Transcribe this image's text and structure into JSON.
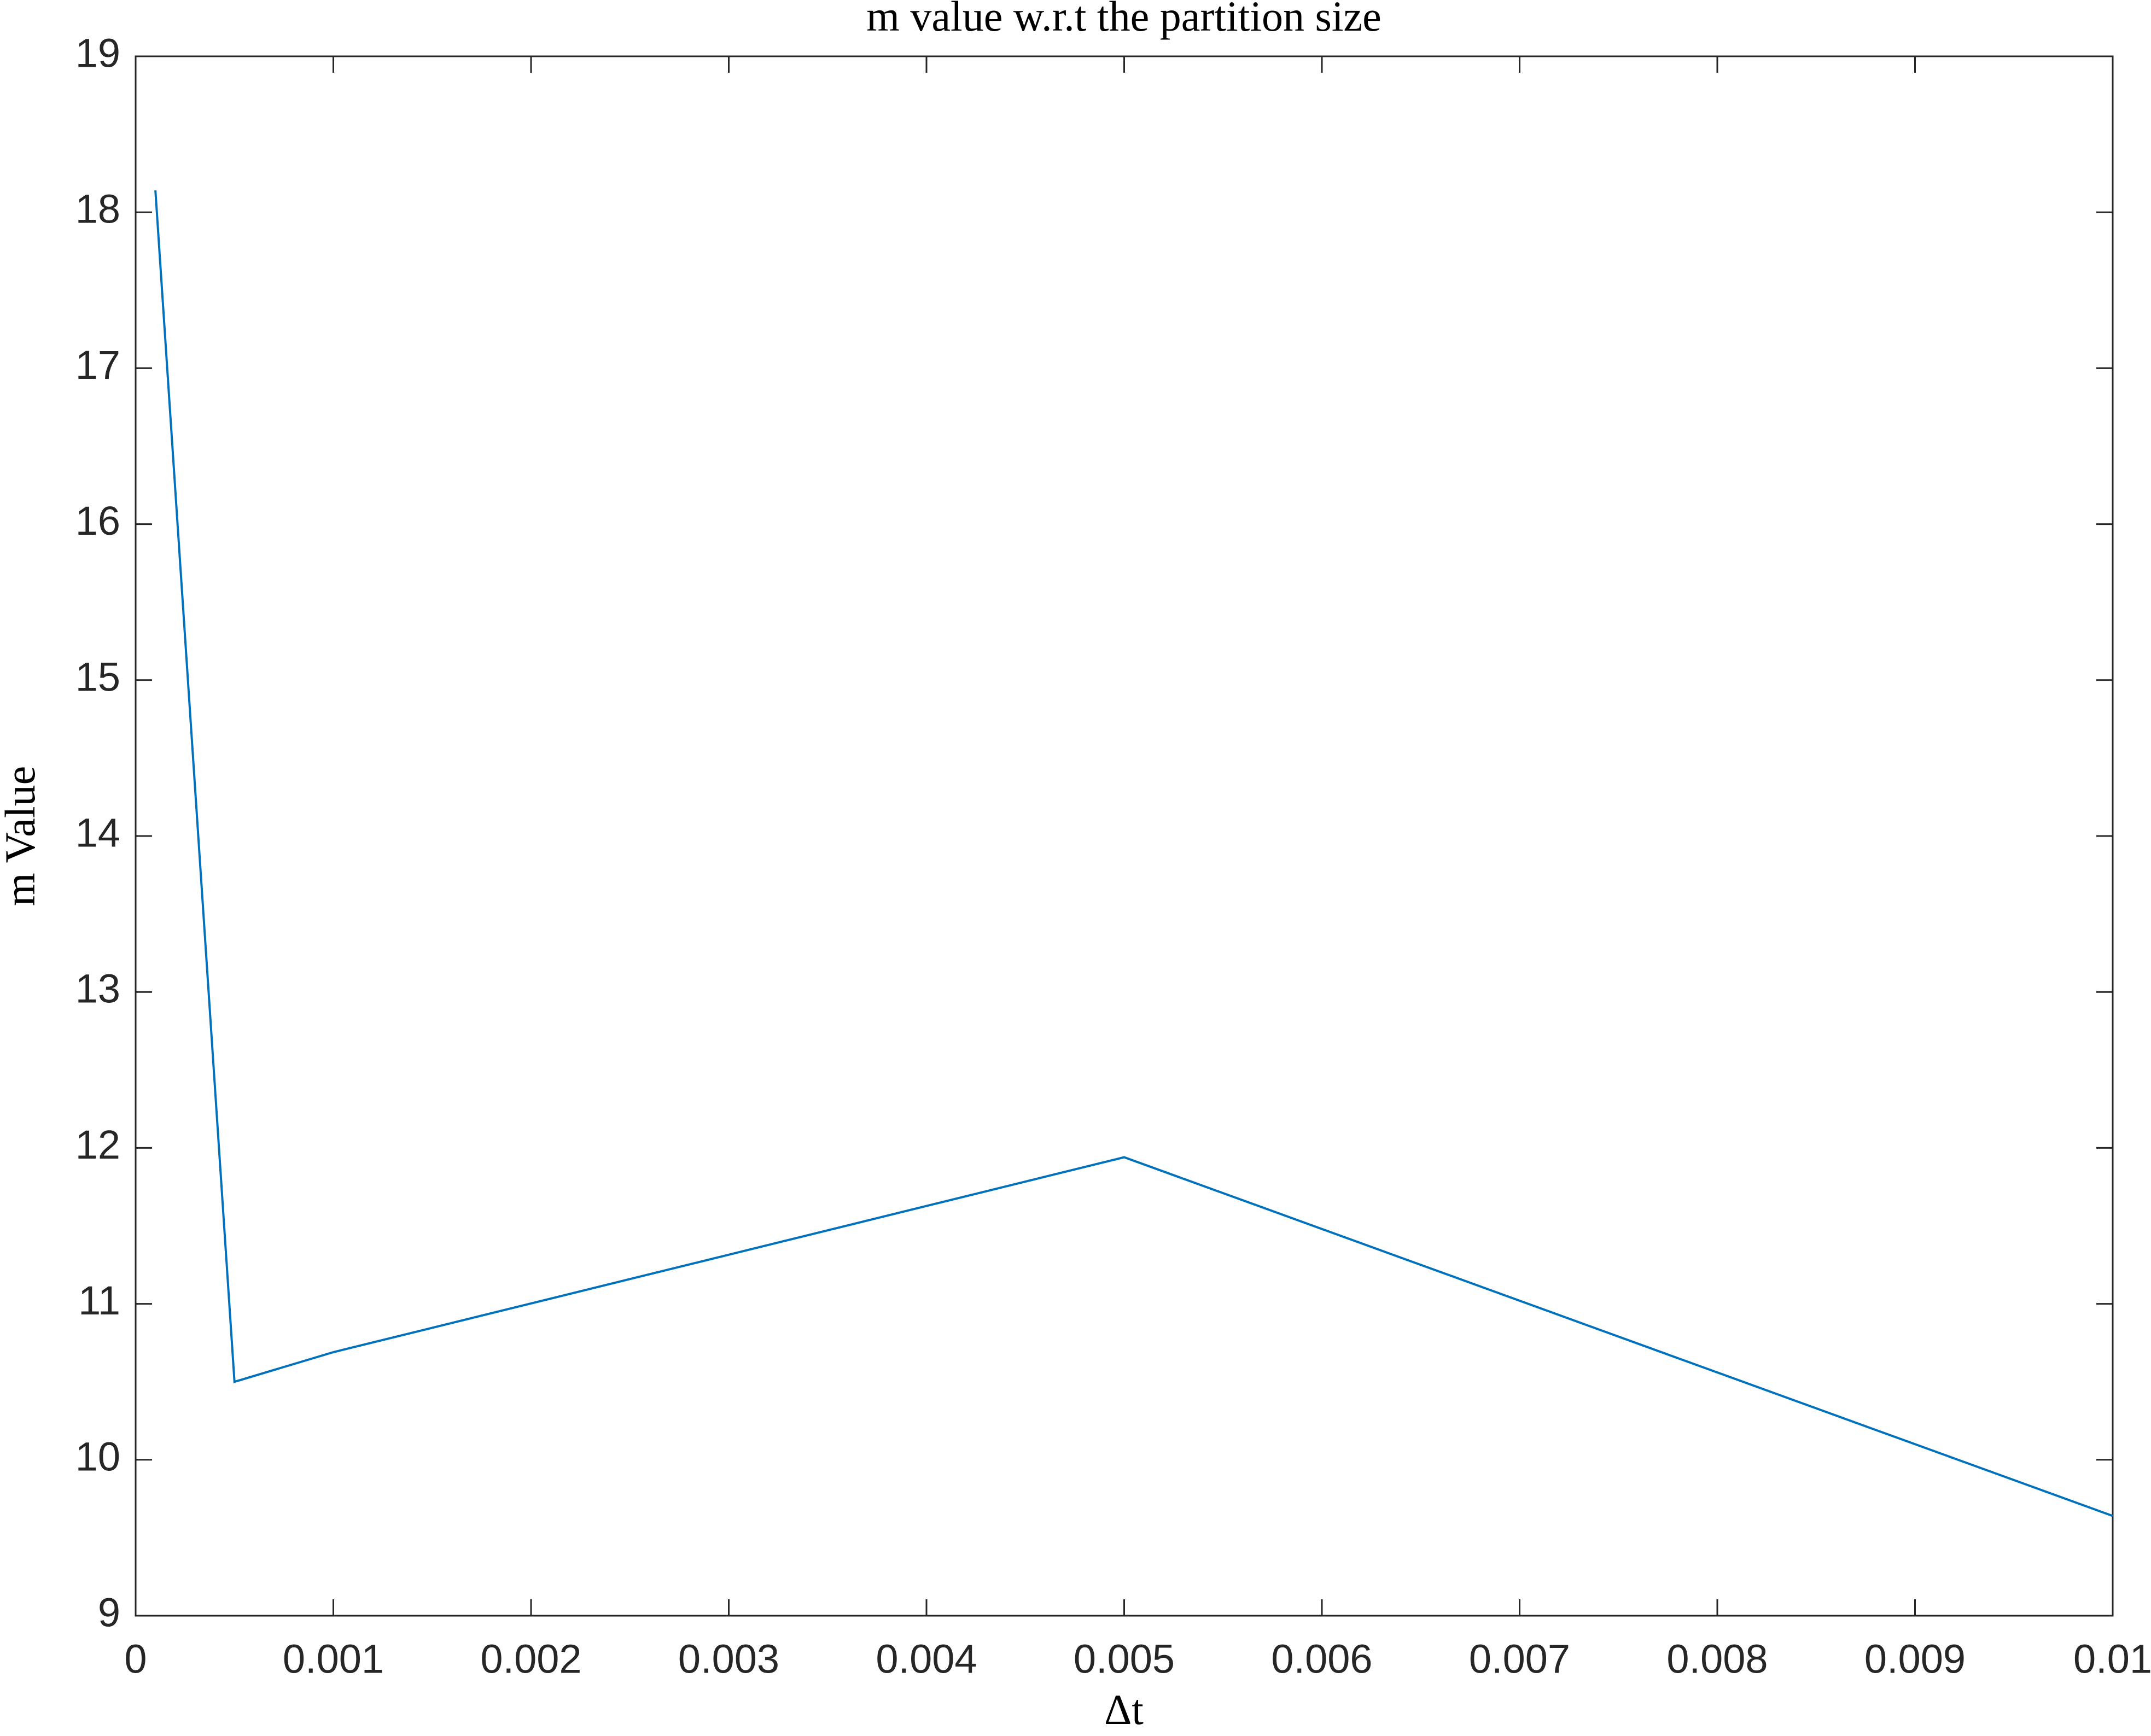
{
  "chart_data": {
    "type": "line",
    "title": "m value w.r.t the partition size",
    "x_label": "Δt",
    "y_label": "m Value",
    "x": [
      0.0001,
      0.0005,
      0.001,
      0.005,
      0.01
    ],
    "series": [
      {
        "name": "m",
        "color": "#0072bd",
        "values": [
          18.14,
          10.5,
          10.69,
          11.94,
          9.64
        ]
      }
    ],
    "xlim": [
      0,
      0.01
    ],
    "ylim": [
      9,
      19
    ],
    "xticks": [
      0,
      0.001,
      0.002,
      0.003,
      0.004,
      0.005,
      0.006,
      0.007,
      0.008,
      0.009,
      0.01
    ],
    "yticks": [
      9,
      10,
      11,
      12,
      13,
      14,
      15,
      16,
      17,
      18,
      19
    ],
    "grid": false
  }
}
